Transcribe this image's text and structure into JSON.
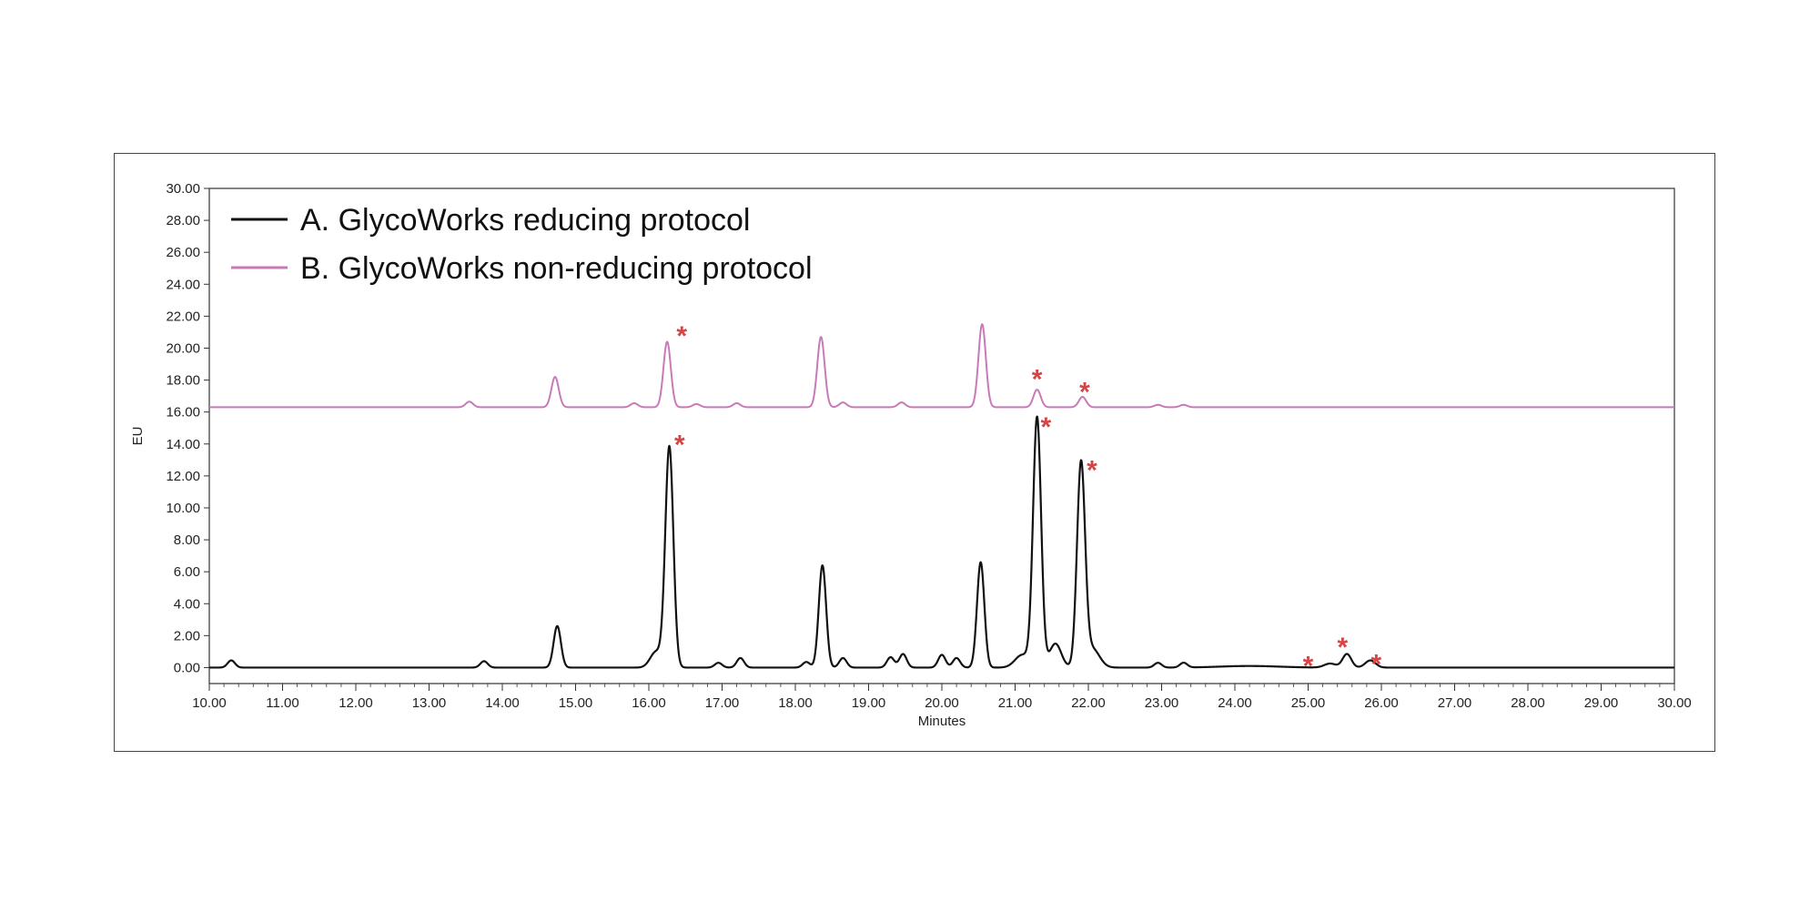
{
  "chart_data": {
    "type": "line",
    "title": "",
    "xlabel": "Minutes",
    "ylabel": "EU",
    "xlim": [
      10.0,
      30.0
    ],
    "ylim": [
      -1.0,
      30.0
    ],
    "x_ticks": [
      "10.00",
      "11.00",
      "12.00",
      "13.00",
      "14.00",
      "15.00",
      "16.00",
      "17.00",
      "18.00",
      "19.00",
      "20.00",
      "21.00",
      "22.00",
      "23.00",
      "24.00",
      "25.00",
      "26.00",
      "27.00",
      "28.00",
      "29.00",
      "30.00"
    ],
    "y_ticks": [
      "0.00",
      "2.00",
      "4.00",
      "6.00",
      "8.00",
      "10.00",
      "12.00",
      "14.00",
      "16.00",
      "18.00",
      "20.00",
      "22.00",
      "24.00",
      "26.00",
      "28.00",
      "30.00"
    ],
    "grid": false,
    "legend_position": "top-left",
    "series": [
      {
        "name": "A. GlycoWorks reducing protocol",
        "color": "#111111",
        "baseline": 0.0,
        "peaks": [
          {
            "x": 10.3,
            "height": 0.45,
            "width": 0.05
          },
          {
            "x": 13.75,
            "height": 0.4,
            "width": 0.05
          },
          {
            "x": 14.75,
            "height": 2.6,
            "width": 0.05
          },
          {
            "x": 16.1,
            "height": 1.0,
            "width": 0.08
          },
          {
            "x": 16.28,
            "height": 13.8,
            "width": 0.055
          },
          {
            "x": 16.95,
            "height": 0.3,
            "width": 0.05
          },
          {
            "x": 17.25,
            "height": 0.6,
            "width": 0.05
          },
          {
            "x": 18.15,
            "height": 0.35,
            "width": 0.05
          },
          {
            "x": 18.37,
            "height": 6.4,
            "width": 0.05
          },
          {
            "x": 18.65,
            "height": 0.6,
            "width": 0.05
          },
          {
            "x": 19.3,
            "height": 0.65,
            "width": 0.05
          },
          {
            "x": 19.47,
            "height": 0.85,
            "width": 0.05
          },
          {
            "x": 20.0,
            "height": 0.8,
            "width": 0.05
          },
          {
            "x": 20.2,
            "height": 0.6,
            "width": 0.05
          },
          {
            "x": 20.53,
            "height": 6.6,
            "width": 0.05
          },
          {
            "x": 21.1,
            "height": 0.8,
            "width": 0.1
          },
          {
            "x": 21.3,
            "height": 15.6,
            "width": 0.055
          },
          {
            "x": 21.55,
            "height": 1.5,
            "width": 0.08
          },
          {
            "x": 21.9,
            "height": 12.6,
            "width": 0.055
          },
          {
            "x": 22.05,
            "height": 1.2,
            "width": 0.1
          },
          {
            "x": 22.95,
            "height": 0.3,
            "width": 0.05
          },
          {
            "x": 23.3,
            "height": 0.3,
            "width": 0.05
          },
          {
            "x": 24.2,
            "height": 0.1,
            "width": 0.4
          },
          {
            "x": 25.3,
            "height": 0.25,
            "width": 0.08
          },
          {
            "x": 25.53,
            "height": 0.85,
            "width": 0.06
          },
          {
            "x": 25.85,
            "height": 0.45,
            "width": 0.07
          }
        ]
      },
      {
        "name": "B. GlycoWorks non-reducing protocol",
        "color": "#c87ab7",
        "baseline": 16.3,
        "peaks": [
          {
            "x": 13.55,
            "height": 0.35,
            "width": 0.05
          },
          {
            "x": 14.72,
            "height": 1.9,
            "width": 0.05
          },
          {
            "x": 15.8,
            "height": 0.25,
            "width": 0.05
          },
          {
            "x": 16.25,
            "height": 4.1,
            "width": 0.05
          },
          {
            "x": 16.65,
            "height": 0.2,
            "width": 0.05
          },
          {
            "x": 17.2,
            "height": 0.25,
            "width": 0.05
          },
          {
            "x": 18.35,
            "height": 4.4,
            "width": 0.05
          },
          {
            "x": 18.65,
            "height": 0.3,
            "width": 0.05
          },
          {
            "x": 19.45,
            "height": 0.3,
            "width": 0.05
          },
          {
            "x": 20.55,
            "height": 5.2,
            "width": 0.05
          },
          {
            "x": 21.3,
            "height": 1.1,
            "width": 0.05
          },
          {
            "x": 21.92,
            "height": 0.65,
            "width": 0.05
          },
          {
            "x": 22.95,
            "height": 0.15,
            "width": 0.05
          },
          {
            "x": 23.3,
            "height": 0.15,
            "width": 0.05
          }
        ]
      }
    ],
    "annotations": [
      {
        "text": "*",
        "x": 16.45,
        "y": 21.0,
        "color": "#d64545"
      },
      {
        "text": "*",
        "x": 21.3,
        "y": 18.3,
        "color": "#d64545"
      },
      {
        "text": "*",
        "x": 21.95,
        "y": 17.5,
        "color": "#d64545"
      },
      {
        "text": "*",
        "x": 16.42,
        "y": 14.2,
        "color": "#d64545"
      },
      {
        "text": "*",
        "x": 21.42,
        "y": 15.3,
        "color": "#d64545"
      },
      {
        "text": "*",
        "x": 22.05,
        "y": 12.6,
        "color": "#d64545"
      },
      {
        "text": "*",
        "x": 25.0,
        "y": 0.35,
        "color": "#d64545"
      },
      {
        "text": "*",
        "x": 25.47,
        "y": 1.5,
        "color": "#d64545"
      },
      {
        "text": "*",
        "x": 25.93,
        "y": 0.45,
        "color": "#d64545"
      }
    ]
  }
}
